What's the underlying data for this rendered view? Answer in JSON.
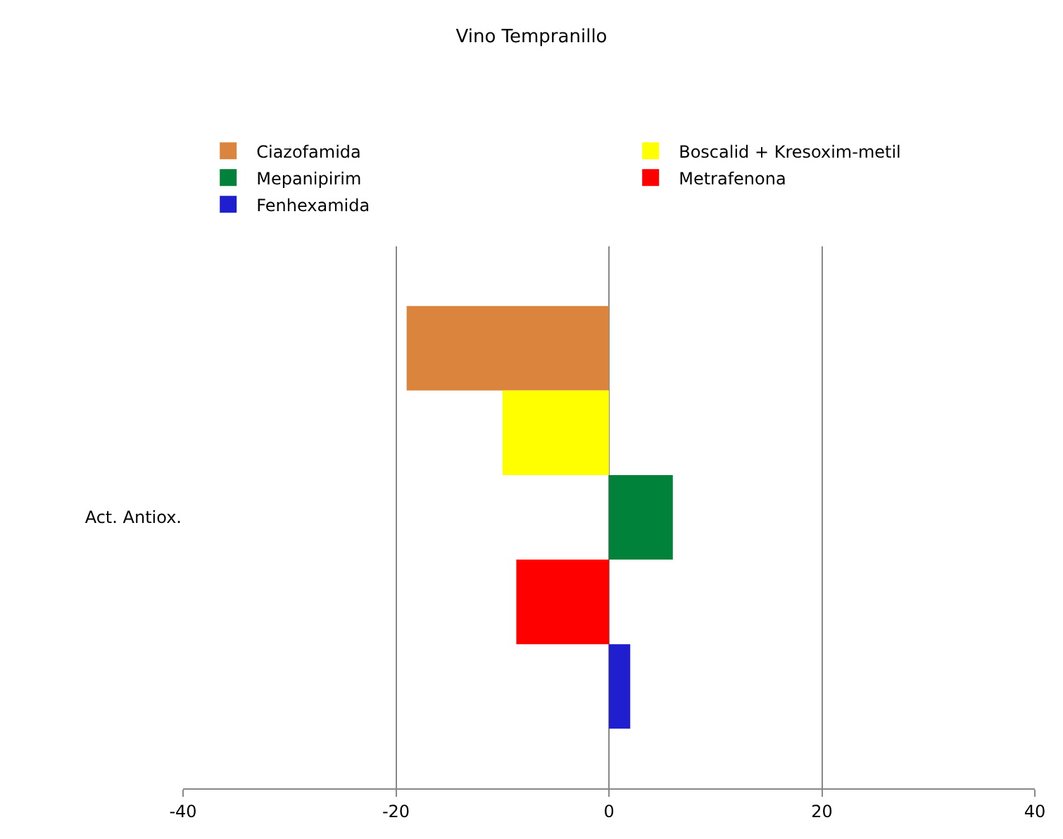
{
  "chart_data": {
    "type": "bar",
    "orientation": "horizontal",
    "title": "Vino Tempranillo",
    "categories": [
      "Act. Antiox."
    ],
    "series": [
      {
        "name": "Ciazofamida",
        "color": "#db843d",
        "values": [
          -19
        ]
      },
      {
        "name": "Boscalid + Kresoxim-metil",
        "color": "#ffff00",
        "values": [
          -10
        ]
      },
      {
        "name": "Mepanipirim",
        "color": "#00823b",
        "values": [
          6
        ]
      },
      {
        "name": "Metrafenona",
        "color": "#ff0000",
        "values": [
          -8.7
        ]
      },
      {
        "name": "Fenhexamida",
        "color": "#1f1fd0",
        "values": [
          2
        ]
      }
    ],
    "xlim": [
      -40,
      40
    ],
    "xticks": [
      -40,
      -20,
      0,
      20,
      40
    ],
    "grid": "x",
    "legend": "top"
  }
}
